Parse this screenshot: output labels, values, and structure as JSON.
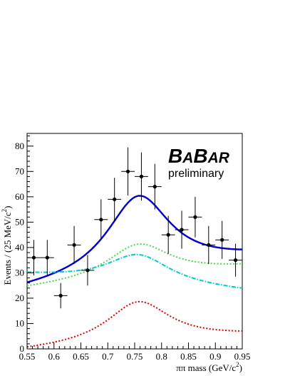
{
  "chart_data": {
    "type": "scatter",
    "xlabel_main": "ππ mass (GeV/c",
    "xlabel_sup": "2",
    "xlabel_end": ")",
    "ylabel_main": "Events / (25 MeV/c",
    "ylabel_sup": "2",
    "ylabel_end": ")",
    "xlim": [
      0.55,
      0.95
    ],
    "ylim": [
      0,
      85
    ],
    "xticks": [
      "0.55",
      "0.6",
      "0.65",
      "0.7",
      "0.75",
      "0.8",
      "0.85",
      "0.9",
      "0.95"
    ],
    "yticks": [
      "0",
      "10",
      "20",
      "30",
      "40",
      "50",
      "60",
      "70",
      "80"
    ],
    "logo": {
      "b1": "B",
      "a1": "A",
      "b2": "B",
      "a2": "AR",
      "subtitle": "preliminary"
    },
    "data_points": {
      "name": "data",
      "color": "#000000",
      "x": [
        0.5625,
        0.5875,
        0.6125,
        0.6375,
        0.6625,
        0.6875,
        0.7125,
        0.7375,
        0.7625,
        0.7875,
        0.8125,
        0.8375,
        0.8625,
        0.8875,
        0.9125,
        0.9375
      ],
      "y": [
        36,
        36,
        21,
        41,
        31,
        51,
        59,
        70,
        68,
        64,
        45,
        47,
        52,
        41,
        43,
        35
      ],
      "yerr": [
        7,
        7,
        5,
        7.5,
        6,
        8,
        8.5,
        9.5,
        9.5,
        9,
        7.5,
        7.5,
        8,
        7.5,
        7.5,
        6.5
      ],
      "xerr": 0.0125
    },
    "curves": [
      {
        "name": "total",
        "color": "#0000cc",
        "style": "solid",
        "base": 31.0,
        "slope": 12.5,
        "peak": 31.0
      },
      {
        "name": "green",
        "color": "#44dd44",
        "style": "dotted",
        "base": 28.5,
        "slope": 8.5,
        "peak": 13.5
      },
      {
        "name": "cyan",
        "color": "#00cccc",
        "style": "dashdot",
        "base": 26.5,
        "slope": -6.5,
        "peak": 11.5
      },
      {
        "name": "red",
        "color": "#dd0000",
        "style": "dotted",
        "base": 3.0,
        "slope": 6.0,
        "peak": 16.5
      }
    ],
    "peak_mass": 0.757,
    "peak_width": 0.145
  }
}
